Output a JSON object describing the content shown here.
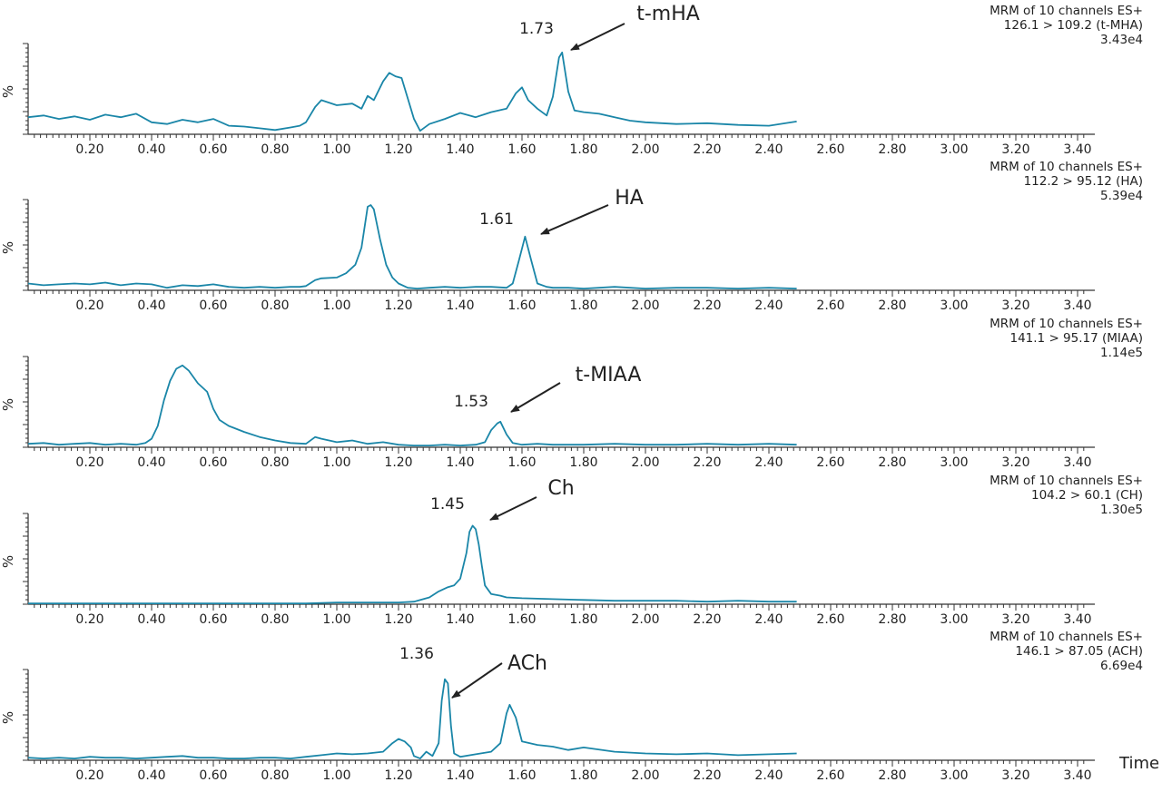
{
  "chart_data": [
    {
      "type": "line",
      "ylabel": "%",
      "info": [
        "MRM of 10 channels ES+",
        "126.1 > 109.2 (t-MHA)",
        "3.43e4"
      ],
      "peak_label": "1.73",
      "compound": "t-mHA",
      "peak_rt": 1.73,
      "xlim": [
        0,
        3.5
      ],
      "ylim": [
        0,
        100
      ],
      "x_ticks": [
        "0.20",
        "0.40",
        "0.60",
        "0.80",
        "1.00",
        "1.20",
        "1.40",
        "1.60",
        "1.80",
        "2.00",
        "2.20",
        "2.40",
        "2.60",
        "2.80",
        "3.00",
        "3.20",
        "3.40"
      ],
      "color": "#1a86a8",
      "series": [
        {
          "x": [
            0.0,
            0.05,
            0.1,
            0.15,
            0.2,
            0.25,
            0.3,
            0.35,
            0.4,
            0.45,
            0.5,
            0.55,
            0.6,
            0.65,
            0.7,
            0.75,
            0.8,
            0.85,
            0.88,
            0.9,
            0.93,
            0.95,
            1.0,
            1.05,
            1.08,
            1.1,
            1.12,
            1.15,
            1.17,
            1.19,
            1.21,
            1.23,
            1.25,
            1.27,
            1.3,
            1.35,
            1.4,
            1.45,
            1.5,
            1.55,
            1.58,
            1.6,
            1.62,
            1.65,
            1.68,
            1.7,
            1.72,
            1.73,
            1.75,
            1.77,
            1.8,
            1.85,
            1.9,
            1.95,
            2.0,
            2.1,
            2.2,
            2.3,
            2.4,
            2.49
          ],
          "y": [
            20,
            22,
            18,
            21,
            17,
            23,
            20,
            24,
            14,
            12,
            17,
            14,
            18,
            10,
            9,
            7,
            5,
            8,
            10,
            14,
            32,
            40,
            34,
            36,
            30,
            45,
            40,
            62,
            72,
            68,
            66,
            42,
            18,
            4,
            12,
            18,
            25,
            20,
            26,
            30,
            48,
            55,
            40,
            30,
            22,
            44,
            90,
            96,
            50,
            28,
            26,
            24,
            20,
            16,
            14,
            12,
            13,
            11,
            10,
            15
          ]
        }
      ]
    },
    {
      "type": "line",
      "ylabel": "%",
      "info": [
        "MRM of 10 channels ES+",
        "112.2 > 95.12 (HA)",
        "5.39e4"
      ],
      "peak_label": "1.61",
      "compound": "HA",
      "peak_rt": 1.61,
      "xlim": [
        0,
        3.5
      ],
      "ylim": [
        0,
        100
      ],
      "x_ticks": [
        "0.20",
        "0.40",
        "0.60",
        "0.80",
        "1.00",
        "1.20",
        "1.40",
        "1.60",
        "1.80",
        "2.00",
        "2.20",
        "2.40",
        "2.60",
        "2.80",
        "3.00",
        "3.20",
        "3.40"
      ],
      "color": "#1a86a8",
      "series": [
        {
          "x": [
            0.0,
            0.05,
            0.1,
            0.15,
            0.2,
            0.25,
            0.3,
            0.35,
            0.4,
            0.45,
            0.5,
            0.55,
            0.6,
            0.65,
            0.7,
            0.75,
            0.8,
            0.85,
            0.88,
            0.9,
            0.93,
            0.95,
            1.0,
            1.03,
            1.06,
            1.08,
            1.1,
            1.11,
            1.12,
            1.14,
            1.16,
            1.18,
            1.2,
            1.23,
            1.26,
            1.3,
            1.35,
            1.4,
            1.45,
            1.5,
            1.55,
            1.57,
            1.59,
            1.61,
            1.63,
            1.65,
            1.68,
            1.7,
            1.75,
            1.8,
            1.9,
            2.0,
            2.1,
            2.2,
            2.3,
            2.4,
            2.49
          ],
          "y": [
            8,
            6,
            7,
            8,
            7,
            9,
            6,
            8,
            7,
            3,
            6,
            5,
            7,
            4,
            3,
            4,
            3,
            4,
            4,
            5,
            12,
            14,
            15,
            20,
            30,
            50,
            98,
            100,
            95,
            60,
            30,
            15,
            8,
            3,
            2,
            3,
            4,
            3,
            4,
            4,
            3,
            8,
            35,
            63,
            35,
            8,
            4,
            3,
            3,
            2,
            4,
            2,
            3,
            3,
            2,
            3,
            2
          ]
        }
      ]
    },
    {
      "type": "line",
      "ylabel": "%",
      "info": [
        "MRM of 10 channels ES+",
        "141.1 > 95.17 (MIAA)",
        "1.14e5"
      ],
      "peak_label": "1.53",
      "compound": "t-MIAA",
      "peak_rt": 1.53,
      "xlim": [
        0,
        3.5
      ],
      "ylim": [
        0,
        100
      ],
      "x_ticks": [
        "0.20",
        "0.40",
        "0.60",
        "0.80",
        "1.00",
        "1.20",
        "1.40",
        "1.60",
        "1.80",
        "2.00",
        "2.20",
        "2.40",
        "2.60",
        "2.80",
        "3.00",
        "3.20",
        "3.40"
      ],
      "color": "#1a86a8",
      "series": [
        {
          "x": [
            0.0,
            0.05,
            0.1,
            0.15,
            0.2,
            0.25,
            0.3,
            0.35,
            0.38,
            0.4,
            0.42,
            0.44,
            0.46,
            0.48,
            0.5,
            0.52,
            0.55,
            0.58,
            0.6,
            0.62,
            0.65,
            0.7,
            0.75,
            0.8,
            0.85,
            0.9,
            0.93,
            0.95,
            1.0,
            1.05,
            1.1,
            1.15,
            1.2,
            1.25,
            1.3,
            1.35,
            1.4,
            1.45,
            1.48,
            1.5,
            1.52,
            1.53,
            1.55,
            1.57,
            1.6,
            1.65,
            1.7,
            1.8,
            1.9,
            2.0,
            2.1,
            2.2,
            2.3,
            2.4,
            2.49
          ],
          "y": [
            4,
            5,
            3,
            4,
            5,
            3,
            4,
            3,
            5,
            10,
            25,
            55,
            78,
            92,
            96,
            90,
            75,
            65,
            45,
            32,
            25,
            18,
            12,
            8,
            5,
            4,
            12,
            10,
            6,
            8,
            4,
            6,
            3,
            2,
            2,
            3,
            2,
            3,
            6,
            20,
            28,
            30,
            15,
            5,
            3,
            4,
            3,
            3,
            4,
            3,
            3,
            4,
            3,
            4,
            3
          ]
        }
      ]
    },
    {
      "type": "line",
      "ylabel": "%",
      "info": [
        "MRM of 10 channels ES+",
        "104.2 > 60.1 (CH)",
        "1.30e5"
      ],
      "peak_label": "1.45",
      "compound": "Ch",
      "peak_rt": 1.45,
      "xlim": [
        0,
        3.5
      ],
      "ylim": [
        0,
        100
      ],
      "x_ticks": [
        "0.20",
        "0.40",
        "0.60",
        "0.80",
        "1.00",
        "1.20",
        "1.40",
        "1.60",
        "1.80",
        "2.00",
        "2.20",
        "2.40",
        "2.60",
        "2.80",
        "3.00",
        "3.20",
        "3.40"
      ],
      "color": "#1a86a8",
      "series": [
        {
          "x": [
            0.0,
            0.1,
            0.2,
            0.3,
            0.4,
            0.5,
            0.6,
            0.7,
            0.8,
            0.9,
            1.0,
            1.1,
            1.2,
            1.25,
            1.3,
            1.33,
            1.36,
            1.38,
            1.4,
            1.42,
            1.43,
            1.44,
            1.45,
            1.46,
            1.47,
            1.48,
            1.5,
            1.53,
            1.55,
            1.6,
            1.7,
            1.8,
            1.9,
            2.0,
            2.1,
            2.2,
            2.3,
            2.4,
            2.49
          ],
          "y": [
            1,
            1,
            1,
            1,
            1,
            1,
            1,
            1,
            1,
            1,
            2,
            2,
            2,
            3,
            8,
            15,
            20,
            22,
            30,
            60,
            85,
            92,
            88,
            70,
            45,
            22,
            12,
            10,
            8,
            7,
            6,
            5,
            4,
            4,
            4,
            3,
            4,
            3,
            3
          ]
        }
      ]
    },
    {
      "type": "line",
      "ylabel": "%",
      "info": [
        "MRM of 10 channels ES+",
        "146.1 > 87.05 (ACH)",
        "6.69e4"
      ],
      "peak_label": "1.36",
      "compound": "ACh",
      "peak_rt": 1.36,
      "xlim": [
        0,
        3.5
      ],
      "ylim": [
        0,
        100
      ],
      "x_ticks": [
        "0.20",
        "0.40",
        "0.60",
        "0.80",
        "1.00",
        "1.20",
        "1.40",
        "1.60",
        "1.80",
        "2.00",
        "2.20",
        "2.40",
        "2.60",
        "2.80",
        "3.00",
        "3.20",
        "3.40"
      ],
      "color": "#1a86a8",
      "series": [
        {
          "x": [
            0.0,
            0.05,
            0.1,
            0.15,
            0.2,
            0.25,
            0.3,
            0.35,
            0.4,
            0.45,
            0.5,
            0.55,
            0.6,
            0.65,
            0.7,
            0.75,
            0.8,
            0.85,
            0.9,
            0.95,
            1.0,
            1.05,
            1.1,
            1.15,
            1.18,
            1.2,
            1.22,
            1.24,
            1.25,
            1.27,
            1.29,
            1.31,
            1.33,
            1.34,
            1.35,
            1.36,
            1.37,
            1.38,
            1.4,
            1.45,
            1.5,
            1.53,
            1.55,
            1.56,
            1.58,
            1.6,
            1.65,
            1.7,
            1.75,
            1.8,
            1.9,
            2.0,
            2.1,
            2.2,
            2.3,
            2.4,
            2.49
          ],
          "y": [
            3,
            2,
            3,
            2,
            4,
            3,
            3,
            2,
            3,
            4,
            5,
            3,
            3,
            2,
            2,
            3,
            3,
            2,
            4,
            6,
            8,
            7,
            8,
            10,
            20,
            25,
            22,
            15,
            5,
            2,
            10,
            5,
            20,
            70,
            95,
            90,
            40,
            8,
            4,
            7,
            10,
            20,
            55,
            65,
            50,
            22,
            18,
            16,
            12,
            15,
            10,
            8,
            7,
            8,
            6,
            7,
            8
          ]
        }
      ]
    }
  ],
  "x_axis_title": "Time"
}
